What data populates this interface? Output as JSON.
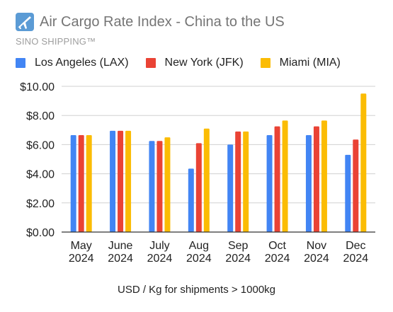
{
  "header": {
    "title": "Air Cargo Rate Index - China to the US",
    "subtitle": "SINO SHIPPING™",
    "icon": "airplane-icon"
  },
  "colors": {
    "lax": "#4285f4",
    "jfk": "#ea4335",
    "mia": "#fbbc04",
    "grid": "#d0d0d0",
    "axis": "#333333"
  },
  "chart_data": {
    "type": "bar",
    "categories": [
      [
        "May",
        "2024"
      ],
      [
        "June",
        "2024"
      ],
      [
        "July",
        "2024"
      ],
      [
        "Aug",
        "2024"
      ],
      [
        "Sep",
        "2024"
      ],
      [
        "Oct",
        "2024"
      ],
      [
        "Nov",
        "2024"
      ],
      [
        "Dec",
        "2024"
      ]
    ],
    "series": [
      {
        "name": "Los Angeles (LAX)",
        "color": "#4285f4",
        "values": [
          6.65,
          6.95,
          6.25,
          4.35,
          6.0,
          6.65,
          6.65,
          5.3
        ]
      },
      {
        "name": "New York (JFK)",
        "color": "#ea4335",
        "values": [
          6.65,
          6.95,
          6.25,
          6.1,
          6.9,
          7.25,
          7.25,
          6.35
        ]
      },
      {
        "name": "Miami (MIA)",
        "color": "#fbbc04",
        "values": [
          6.65,
          6.95,
          6.5,
          7.1,
          6.9,
          7.65,
          7.65,
          9.5
        ]
      }
    ],
    "yticks": [
      "$0.00",
      "$2.00",
      "$4.00",
      "$6.00",
      "$8.00",
      "$10.00"
    ],
    "ylim": [
      0,
      10
    ],
    "xlabel": "USD / Kg for shipments > 1000kg",
    "ylabel": "",
    "grid": true,
    "legend_position": "top"
  }
}
